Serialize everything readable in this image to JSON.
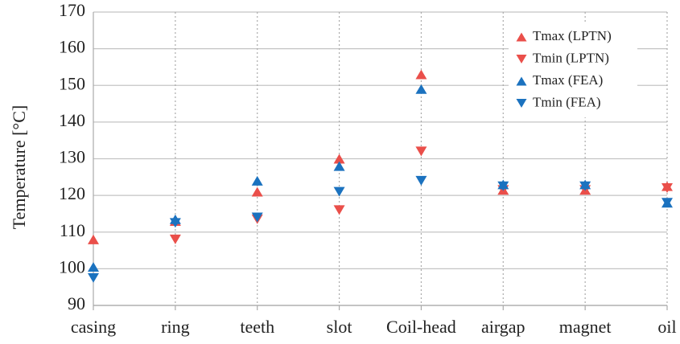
{
  "chart_data": {
    "type": "scatter",
    "y_label": "Temperature [°C]",
    "categories": [
      "casing",
      "ring",
      "teeth",
      "slot",
      "Coil-head",
      "airgap",
      "magnet",
      "oil"
    ],
    "series": [
      {
        "name": "Tmax (LPTN)",
        "color": "#ea4f4a",
        "marker": "triangle-up",
        "values": [
          108,
          113,
          121,
          130,
          153,
          121.5,
          121.5,
          122.5
        ]
      },
      {
        "name": "Tmin (LPTN)",
        "color": "#ea4f4a",
        "marker": "triangle-down",
        "values": [
          null,
          108,
          113.5,
          116,
          132,
          121.5,
          121.5,
          122
        ]
      },
      {
        "name": "Tmax (FEA)",
        "color": "#1b72bf",
        "marker": "triangle-up",
        "values": [
          100.5,
          113.5,
          124,
          128,
          149,
          123,
          123,
          118
        ]
      },
      {
        "name": "Tmin (FEA)",
        "color": "#1b72bf",
        "marker": "triangle-down",
        "values": [
          97.5,
          112.5,
          114,
          121,
          124,
          122.5,
          122.5,
          118
        ]
      }
    ],
    "ylim": [
      90,
      170
    ],
    "yticks": [
      90,
      100,
      110,
      120,
      130,
      140,
      150,
      160,
      170
    ],
    "grid": true,
    "legend_position": "upper right"
  }
}
